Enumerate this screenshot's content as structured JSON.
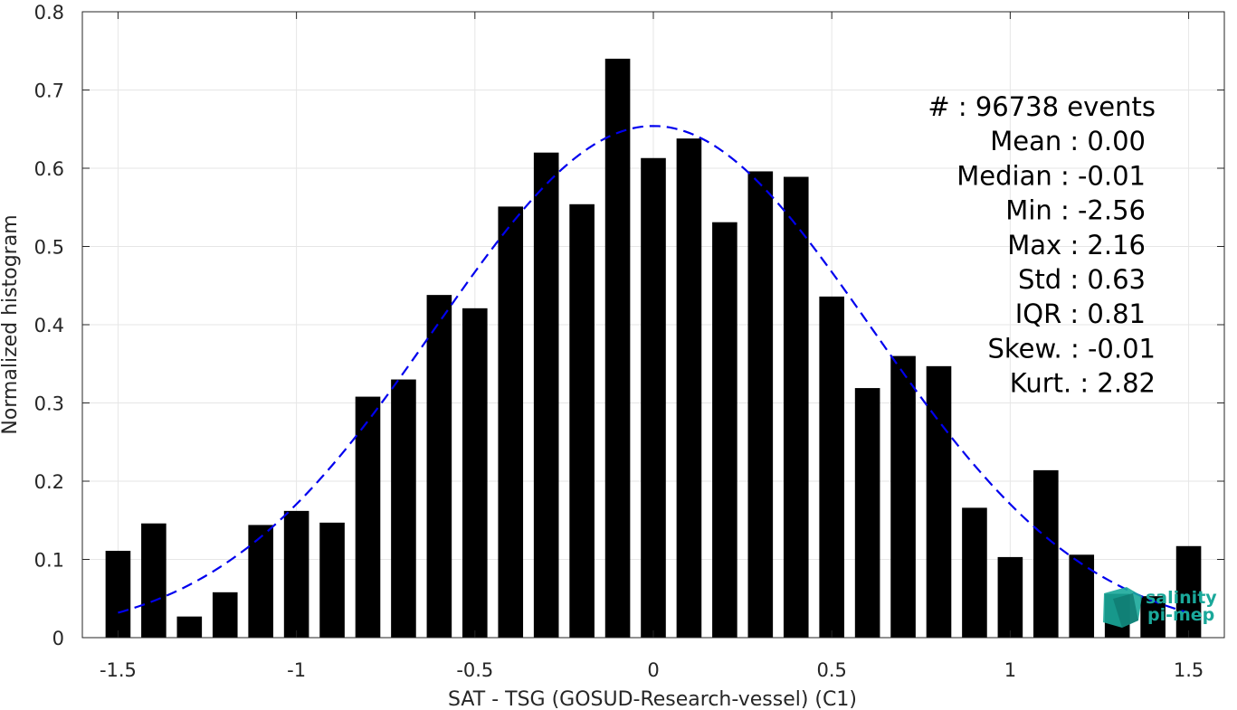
{
  "chart_data": {
    "type": "bar",
    "xlabel": "SAT - TSG (GOSUD-Research-vessel) (C1)",
    "ylabel": "Normalized histogram",
    "xlim": [
      -1.6,
      1.6
    ],
    "ylim": [
      0,
      0.8
    ],
    "grid": true,
    "bar_width": 0.07,
    "x_ticks": [
      -1.5,
      -1,
      -0.5,
      0,
      0.5,
      1,
      1.5
    ],
    "x_tick_labels": [
      "-1.5",
      "-1",
      "-0.5",
      "0",
      "0.5",
      "1",
      "1.5"
    ],
    "y_ticks": [
      0,
      0.1,
      0.2,
      0.3,
      0.4,
      0.5,
      0.6,
      0.7,
      0.8
    ],
    "y_tick_labels": [
      "0",
      "0.1",
      "0.2",
      "0.3",
      "0.4",
      "0.5",
      "0.6",
      "0.7",
      "0.8"
    ],
    "x": [
      -1.5,
      -1.4,
      -1.3,
      -1.2,
      -1.1,
      -1.0,
      -0.9,
      -0.8,
      -0.7,
      -0.6,
      -0.5,
      -0.4,
      -0.3,
      -0.2,
      -0.1,
      0.0,
      0.1,
      0.2,
      0.3,
      0.4,
      0.5,
      0.6,
      0.7,
      0.8,
      0.9,
      1.0,
      1.1,
      1.2,
      1.3,
      1.4,
      1.5
    ],
    "values": [
      0.111,
      0.146,
      0.027,
      0.058,
      0.144,
      0.162,
      0.147,
      0.308,
      0.33,
      0.438,
      0.421,
      0.551,
      0.62,
      0.554,
      0.74,
      0.613,
      0.638,
      0.531,
      0.596,
      0.589,
      0.436,
      0.319,
      0.36,
      0.347,
      0.166,
      0.103,
      0.214,
      0.106,
      0.056,
      0.053,
      0.117
    ],
    "fit_curve": {
      "style": "dashed",
      "color": "#0000ee",
      "mean": 0.0,
      "std": 0.61,
      "x_range": [
        -1.5,
        1.5
      ]
    },
    "bar_color": "#000000",
    "stats": [
      {
        "label": "#  ",
        "value": ": 96738 events"
      },
      {
        "label": "Mean ",
        "value": ": 0.00"
      },
      {
        "label": "Median ",
        "value": ": -0.01"
      },
      {
        "label": "Min ",
        "value": ": -2.56"
      },
      {
        "label": "Max ",
        "value": ": 2.16"
      },
      {
        "label": "Std ",
        "value": ": 0.63"
      },
      {
        "label": "IQR ",
        "value": ": 0.81"
      },
      {
        "label": "Skew. ",
        "value": ": -0.01"
      },
      {
        "label": "Kurt. ",
        "value": ": 2.82"
      }
    ],
    "stats_lines": [
      "#  : 96738 events",
      "Mean : 0.00",
      "Median : -0.01",
      "Min : -2.56",
      "Max : 2.16",
      "Std : 0.63",
      "IQR : 0.81",
      "Skew. : -0.01",
      "Kurt. : 2.82"
    ]
  },
  "logo": {
    "line1": "salinity",
    "line2": "pi-mep",
    "color": "#1aa89a"
  }
}
